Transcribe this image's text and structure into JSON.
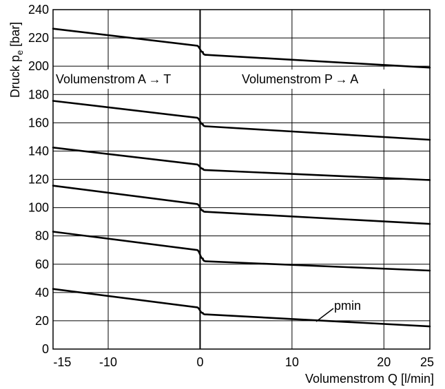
{
  "chart_data": {
    "type": "line",
    "title": "",
    "xlabel": "Volumenstrom Q [l/min]",
    "ylabel_main": "Druck p",
    "ylabel_sub": "e",
    "ylabel_unit": " [bar]",
    "xlim": [
      -16,
      25
    ],
    "ylim": [
      0,
      240
    ],
    "x_ticks": [
      {
        "value": -15,
        "label": "-15"
      },
      {
        "value": -10,
        "label": "-10"
      },
      {
        "value": 0,
        "label": "0"
      },
      {
        "value": 10,
        "label": "10"
      },
      {
        "value": 20,
        "label": "20"
      },
      {
        "value": 25,
        "label": "25"
      }
    ],
    "y_ticks": [
      {
        "value": 0,
        "label": "0"
      },
      {
        "value": 20,
        "label": "20"
      },
      {
        "value": 40,
        "label": "40"
      },
      {
        "value": 60,
        "label": "60"
      },
      {
        "value": 80,
        "label": "80"
      },
      {
        "value": 100,
        "label": "100"
      },
      {
        "value": 120,
        "label": "120"
      },
      {
        "value": 140,
        "label": "140"
      },
      {
        "value": 160,
        "label": "160"
      },
      {
        "value": 180,
        "label": "180"
      },
      {
        "value": 200,
        "label": "200"
      },
      {
        "value": 220,
        "label": "220"
      },
      {
        "value": 240,
        "label": "240"
      }
    ],
    "grid_x": [
      -10,
      0,
      10,
      20
    ],
    "grid_y": [
      20,
      40,
      60,
      80,
      100,
      120,
      140,
      160,
      180,
      200,
      220
    ],
    "grid": true,
    "annotations": {
      "left_region": "Volumenstrom A → T",
      "right_region": "Volumenstrom P → A",
      "pmin": "pmin"
    },
    "series": [
      {
        "x": [
          -16,
          -0.3,
          0,
          0.3,
          0.7,
          25
        ],
        "y": [
          226.5,
          214.5,
          213.5,
          210,
          208,
          199
        ]
      },
      {
        "x": [
          -16,
          -0.3,
          0,
          0.3,
          0.7,
          25
        ],
        "y": [
          175.5,
          163.5,
          162.5,
          159,
          157.5,
          148
        ]
      },
      {
        "x": [
          -16,
          -0.3,
          0,
          0.3,
          0.7,
          25
        ],
        "y": [
          142.5,
          130.5,
          129.5,
          127.5,
          126.5,
          119.5
        ]
      },
      {
        "x": [
          -16,
          -0.3,
          0,
          0.3,
          0.7,
          25
        ],
        "y": [
          115.5,
          102.5,
          101.5,
          98,
          97,
          88.5
        ]
      },
      {
        "x": [
          -16,
          -0.3,
          0,
          0.3,
          0.7,
          25
        ],
        "y": [
          83,
          70,
          69,
          64,
          62,
          55.5
        ]
      },
      {
        "x": [
          -16,
          -0.3,
          0,
          0.3,
          0.7,
          25
        ],
        "y": [
          42.5,
          29.5,
          28.5,
          25.5,
          24.5,
          16
        ]
      }
    ]
  }
}
